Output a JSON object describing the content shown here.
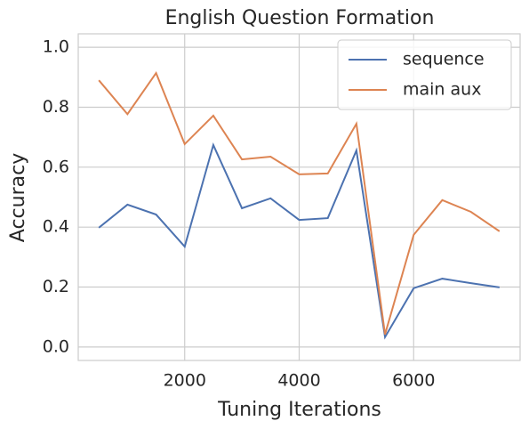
{
  "chart_data": {
    "type": "line",
    "title": "English Question Formation",
    "xlabel": "Tuning Iterations",
    "ylabel": "Accuracy",
    "x": [
      500,
      1000,
      1500,
      2000,
      2500,
      3000,
      3500,
      4000,
      4500,
      5000,
      5500,
      6000,
      6500,
      7000,
      7500
    ],
    "series": [
      {
        "name": "sequence",
        "color": "#4c72b0",
        "values": [
          0.398,
          0.475,
          0.442,
          0.335,
          0.674,
          0.463,
          0.496,
          0.424,
          0.43,
          0.656,
          0.033,
          0.196,
          0.228,
          0.213,
          0.199
        ]
      },
      {
        "name": "main aux",
        "color": "#dd8452",
        "values": [
          0.89,
          0.777,
          0.914,
          0.677,
          0.772,
          0.626,
          0.635,
          0.576,
          0.579,
          0.745,
          0.042,
          0.374,
          0.49,
          0.451,
          0.386
        ]
      }
    ],
    "xlim": [
      140,
      7860
    ],
    "ylim": [
      -0.045,
      1.045
    ],
    "xticks": [
      2000,
      4000,
      6000
    ],
    "yticks": [
      {
        "value": 0,
        "label": "0.0"
      },
      0.2,
      0.4,
      0.6,
      0.8,
      {
        "value": 1,
        "label": "1.0"
      }
    ],
    "grid": true,
    "legend": "upper right"
  }
}
